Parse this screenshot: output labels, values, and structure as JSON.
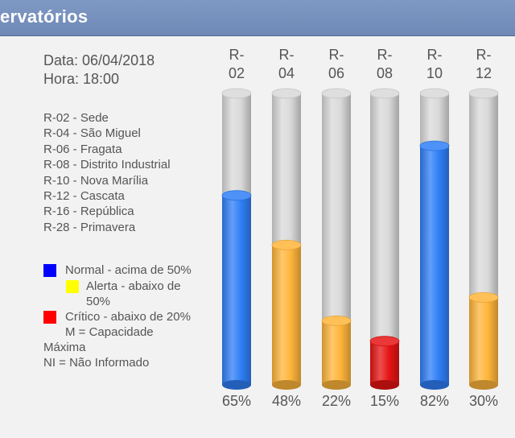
{
  "header": {
    "title": "ervatórios"
  },
  "meta": {
    "date_line": "Data: 06/04/2018",
    "time_line": "Hora: 18:00"
  },
  "stations": [
    "R-02 - Sede",
    "R-04 - São Miguel",
    "R-06 - Fragata",
    "R-08 - Distrito Industrial",
    "R-10 - Nova Marília",
    "R-12 - Cascata",
    "R-16 - República",
    "R-28 - Primavera"
  ],
  "legend": {
    "normal": "Normal - acima de 50%",
    "alerta_1": "Alerta - abaixo de",
    "alerta_2": "50%",
    "critico": "Crítico - abaixo de 20%",
    "capacidade_1": "M = Capacidade",
    "capacidade_2": "Máxima",
    "ni": "NI = Não Informado",
    "colors": {
      "normal": "#0000ff",
      "alerta": "#ffff00",
      "critico": "#ff0000"
    }
  },
  "chart_data": {
    "type": "bar",
    "categories": [
      "R-02",
      "R-04",
      "R-06",
      "R-08",
      "R-10",
      "R-12"
    ],
    "header_lines": [
      [
        "R-",
        "02"
      ],
      [
        "R-",
        "04"
      ],
      [
        "R-",
        "06"
      ],
      [
        "R-",
        "08"
      ],
      [
        "R-",
        "10"
      ],
      [
        "R-",
        "12"
      ]
    ],
    "values": [
      65,
      48,
      22,
      15,
      82,
      30
    ],
    "value_labels": [
      "65%",
      "48%",
      "22%",
      "15%",
      "82%",
      "30%"
    ],
    "status": [
      "normal",
      "alerta",
      "alerta",
      "critico",
      "normal",
      "alerta"
    ],
    "ylim": [
      0,
      100
    ],
    "colors": {
      "normal": "#2f7ff7",
      "alerta": "#ffb53a",
      "critico": "#e61414",
      "empty": "#d9d9d9"
    }
  }
}
